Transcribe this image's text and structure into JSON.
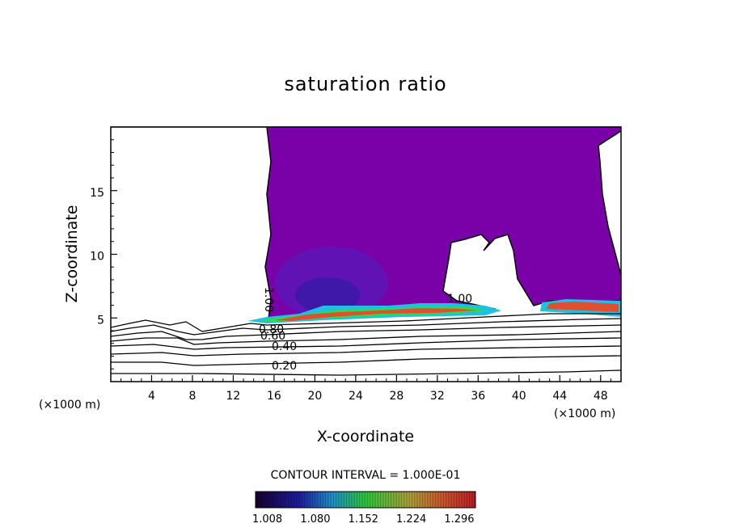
{
  "chart_data": {
    "type": "contour",
    "title": "saturation ratio",
    "xlabel": "X-coordinate",
    "ylabel": "Z-coordinate",
    "x_unit_left": "(×1000 m)",
    "x_unit_right": "(×1000 m)",
    "xlim": [
      0,
      50
    ],
    "ylim": [
      0,
      20
    ],
    "x_ticks": [
      4,
      8,
      12,
      16,
      20,
      24,
      28,
      32,
      36,
      40,
      44,
      48
    ],
    "y_ticks": [
      5,
      10,
      15
    ],
    "contour_interval_text": "CONTOUR INTERVAL = 1.000E-01",
    "contour_labels": [
      "0.20",
      "0.40",
      "0.60",
      "0.80",
      "1.00",
      "1.00"
    ],
    "colorbar": {
      "ticks": [
        "1.008",
        "1.080",
        "1.152",
        "1.224",
        "1.296"
      ],
      "range": [
        1.0,
        1.33
      ]
    },
    "colors": {
      "supersat": "#7a00a8",
      "cbar_low": "#160030",
      "cbar_mid": "#33dd33",
      "cbar_high": "#d0202a"
    }
  }
}
